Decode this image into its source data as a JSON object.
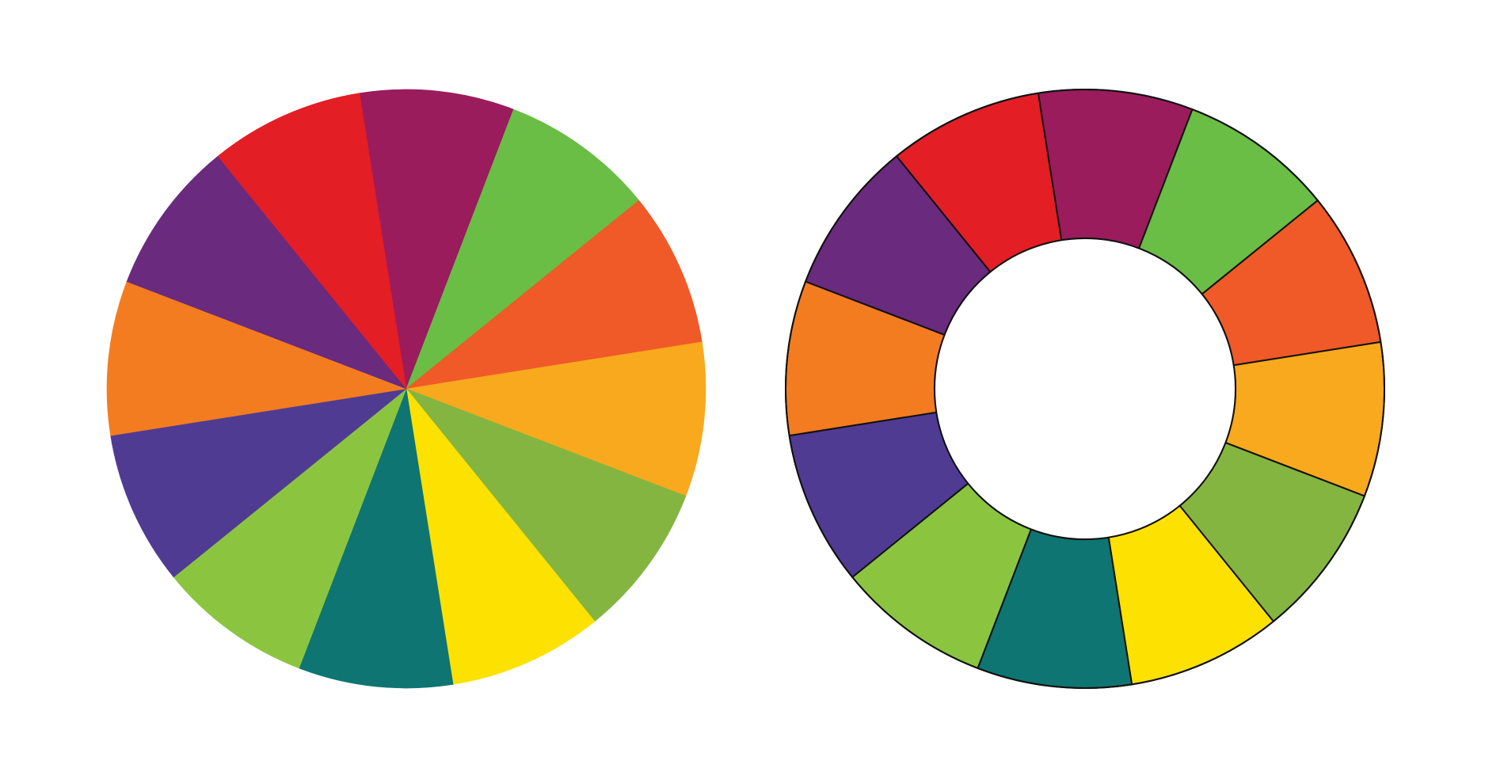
{
  "segment_count": 12,
  "wheels": [
    {
      "name": "solid-color-wheel",
      "outline": false,
      "segments": [
        {
          "name": "magenta",
          "color": "#9A1C5C"
        },
        {
          "name": "green",
          "color": "#6ABD45"
        },
        {
          "name": "red-orange",
          "color": "#EF5A28"
        },
        {
          "name": "yellow-orange",
          "color": "#F8A91D"
        },
        {
          "name": "yellow-green",
          "color": "#85B541"
        },
        {
          "name": "yellow",
          "color": "#FDE100"
        },
        {
          "name": "teal",
          "color": "#0E7572"
        },
        {
          "name": "lime-green",
          "color": "#8BC540"
        },
        {
          "name": "blue-violet",
          "color": "#503B93"
        },
        {
          "name": "orange",
          "color": "#F47C20"
        },
        {
          "name": "violet",
          "color": "#6A2A7D"
        },
        {
          "name": "red",
          "color": "#E31E25"
        }
      ]
    },
    {
      "name": "ring-color-wheel",
      "outline": true,
      "outline_color": "#111111",
      "segments": [
        {
          "name": "magenta",
          "color": "#9A1C5C"
        },
        {
          "name": "green",
          "color": "#6ABD45"
        },
        {
          "name": "red-orange",
          "color": "#EF5A28"
        },
        {
          "name": "yellow-orange",
          "color": "#F8A91D"
        },
        {
          "name": "yellow-green",
          "color": "#85B541"
        },
        {
          "name": "yellow",
          "color": "#FDE100"
        },
        {
          "name": "teal",
          "color": "#0E7572"
        },
        {
          "name": "lime-green",
          "color": "#8BC540"
        },
        {
          "name": "blue-violet",
          "color": "#503B93"
        },
        {
          "name": "orange",
          "color": "#F47C20"
        },
        {
          "name": "violet",
          "color": "#6A2A7D"
        },
        {
          "name": "red",
          "color": "#E31E25"
        }
      ]
    }
  ]
}
